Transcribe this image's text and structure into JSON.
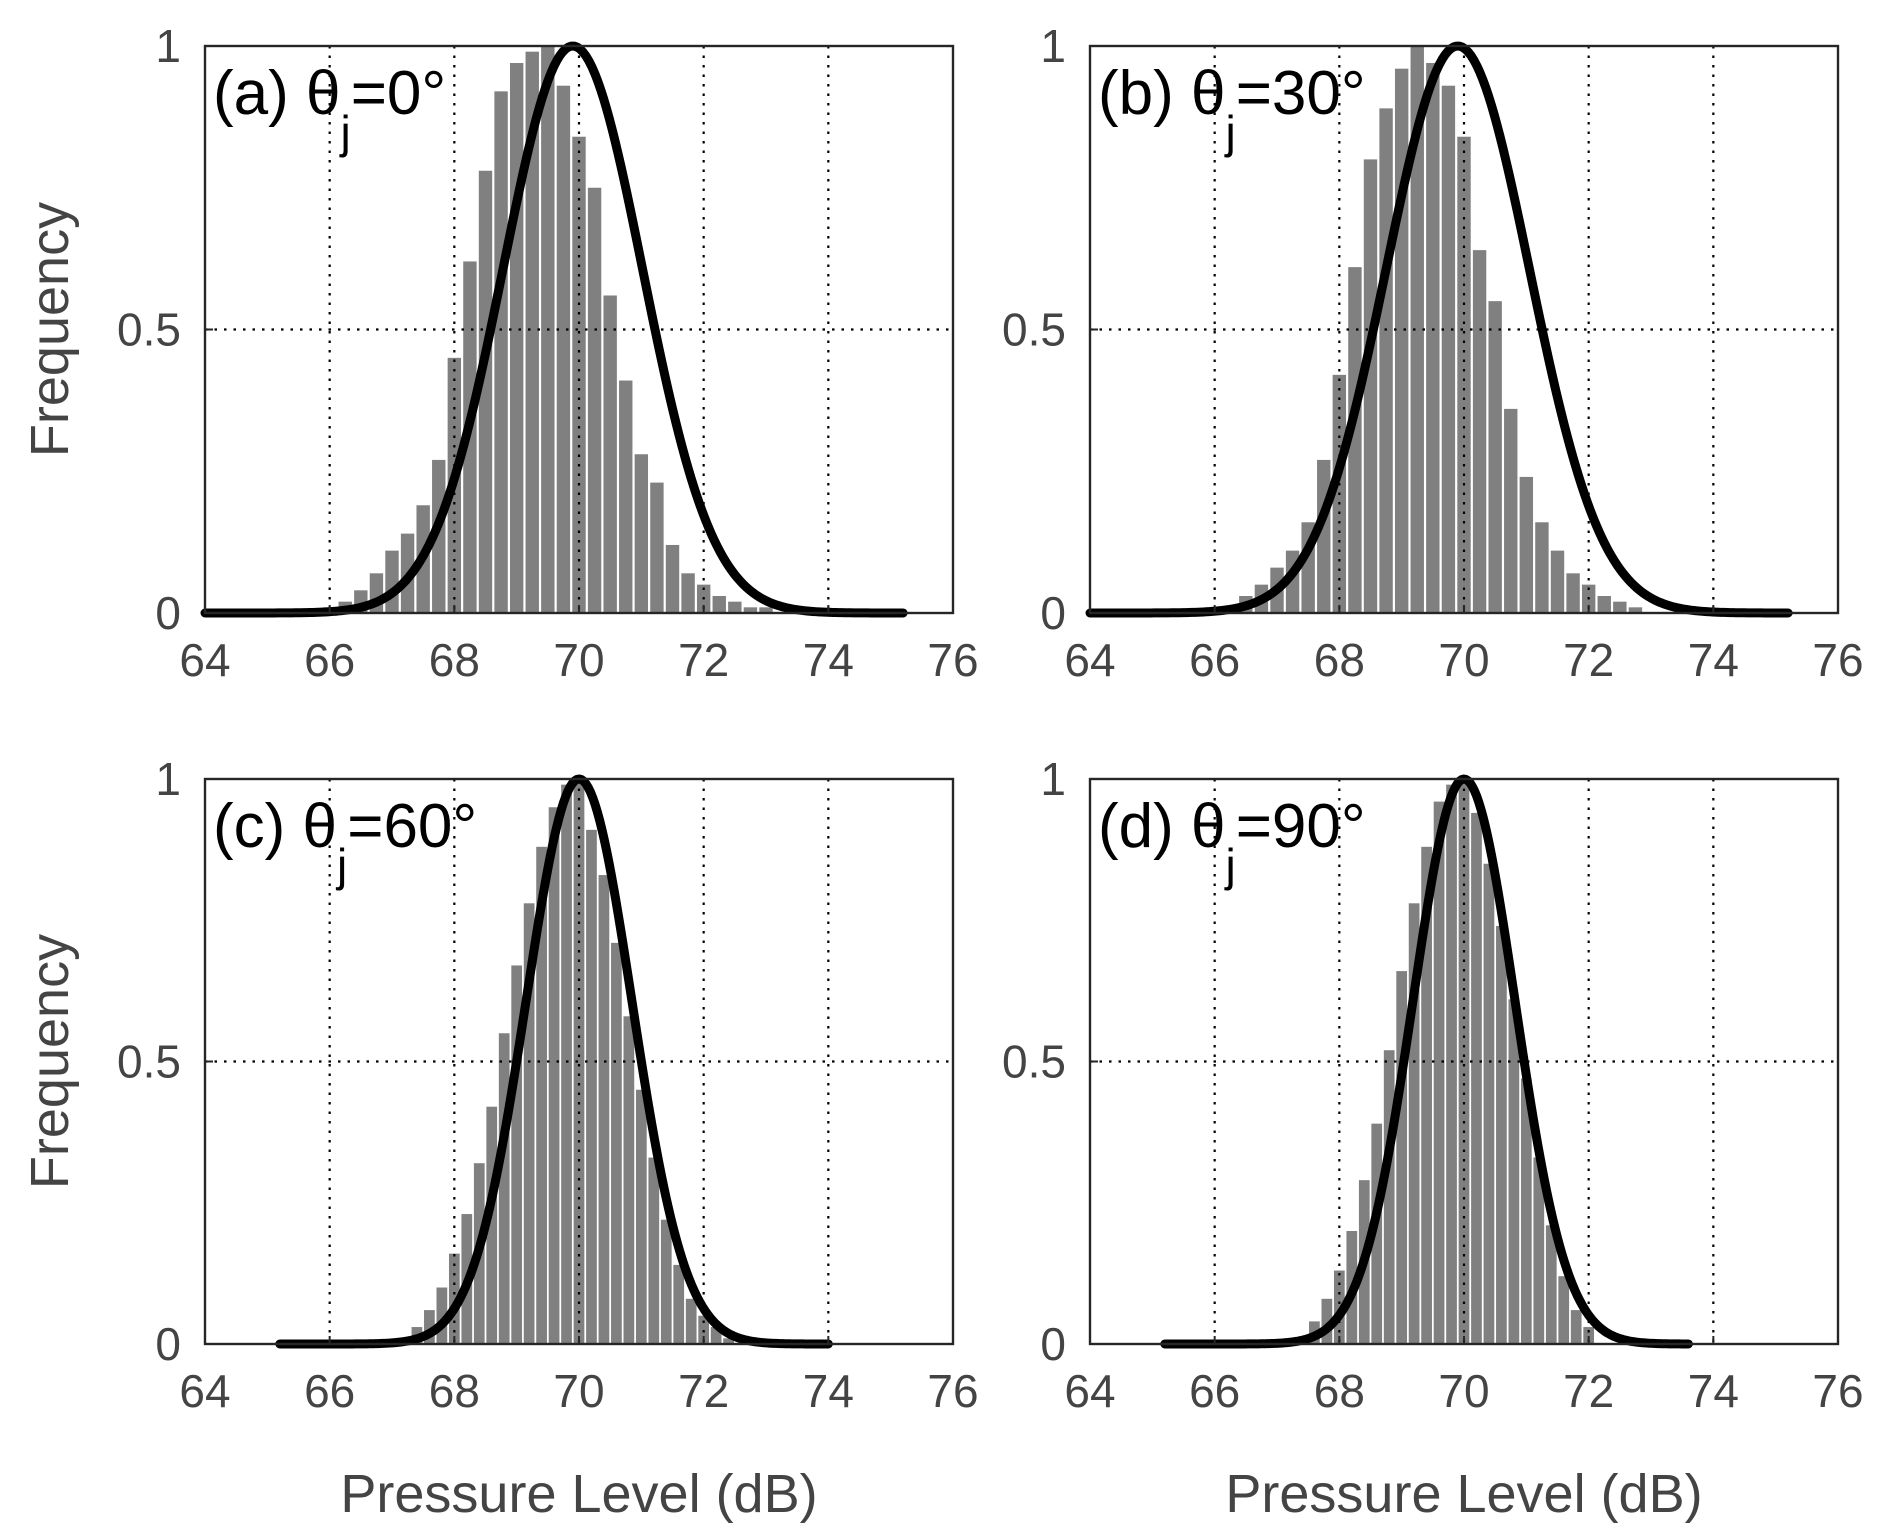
{
  "chart_data": [
    {
      "type": "bar",
      "panel": "(a)",
      "title_prefix": "(a) θ",
      "title_sub": "j",
      "title_suffix": "=0°",
      "xlabel": "",
      "ylabel": "Frequency",
      "xlim": [
        64,
        76
      ],
      "ylim": [
        0,
        1
      ],
      "xticks": [
        "64",
        "66",
        "68",
        "70",
        "72",
        "74",
        "76"
      ],
      "yticks": [
        "0",
        "0.5",
        "1"
      ],
      "grid": true,
      "bins": {
        "x": [
          66.0,
          66.25,
          66.5,
          66.75,
          67.0,
          67.25,
          67.5,
          67.75,
          68.0,
          68.25,
          68.5,
          68.75,
          69.0,
          69.25,
          69.5,
          69.75,
          70.0,
          70.25,
          70.5,
          70.75,
          71.0,
          71.25,
          71.5,
          71.75,
          72.0,
          72.25,
          72.5,
          72.75,
          73.0
        ],
        "values": [
          0.01,
          0.02,
          0.04,
          0.07,
          0.11,
          0.14,
          0.19,
          0.27,
          0.45,
          0.62,
          0.78,
          0.92,
          0.97,
          0.99,
          1.0,
          0.93,
          0.84,
          0.75,
          0.56,
          0.41,
          0.28,
          0.23,
          0.12,
          0.07,
          0.05,
          0.03,
          0.02,
          0.01,
          0.01
        ]
      },
      "fit": {
        "mean": 69.9,
        "sigma": 1.12,
        "x_range": [
          64,
          75.2
        ]
      }
    },
    {
      "type": "bar",
      "panel": "(b)",
      "title_prefix": "(b) θ",
      "title_sub": "j",
      "title_suffix": "=30°",
      "xlabel": "",
      "ylabel": "",
      "xlim": [
        64,
        76
      ],
      "ylim": [
        0,
        1
      ],
      "xticks": [
        "64",
        "66",
        "68",
        "70",
        "72",
        "74",
        "76"
      ],
      "yticks": [
        "0",
        "0.5",
        "1"
      ],
      "grid": true,
      "bins": {
        "x": [
          66.5,
          66.75,
          67.0,
          67.25,
          67.5,
          67.75,
          68.0,
          68.25,
          68.5,
          68.75,
          69.0,
          69.25,
          69.5,
          69.75,
          70.0,
          70.25,
          70.5,
          70.75,
          71.0,
          71.25,
          71.5,
          71.75,
          72.0,
          72.25,
          72.5,
          72.75
        ],
        "values": [
          0.03,
          0.05,
          0.08,
          0.11,
          0.16,
          0.27,
          0.42,
          0.61,
          0.8,
          0.89,
          0.96,
          1.0,
          0.97,
          0.93,
          0.84,
          0.64,
          0.55,
          0.36,
          0.24,
          0.16,
          0.11,
          0.07,
          0.05,
          0.03,
          0.02,
          0.01
        ]
      },
      "fit": {
        "mean": 69.9,
        "sigma": 1.15,
        "x_range": [
          64,
          75.2
        ]
      }
    },
    {
      "type": "bar",
      "panel": "(c)",
      "title_prefix": "(c) θ",
      "title_sub": "j",
      "title_suffix": "=60°",
      "xlabel": "Pressure Level (dB)",
      "ylabel": "Frequency",
      "xlim": [
        64,
        76
      ],
      "ylim": [
        0,
        1
      ],
      "xticks": [
        "64",
        "66",
        "68",
        "70",
        "72",
        "74",
        "76"
      ],
      "yticks": [
        "0",
        "0.5",
        "1"
      ],
      "grid": true,
      "bins": {
        "x": [
          67.4,
          67.6,
          67.8,
          68.0,
          68.2,
          68.4,
          68.6,
          68.8,
          69.0,
          69.2,
          69.4,
          69.6,
          69.8,
          70.0,
          70.2,
          70.4,
          70.6,
          70.8,
          71.0,
          71.2,
          71.4,
          71.6,
          71.8,
          72.0,
          72.2,
          72.4
        ],
        "values": [
          0.03,
          0.06,
          0.1,
          0.16,
          0.23,
          0.32,
          0.42,
          0.55,
          0.67,
          0.78,
          0.88,
          0.95,
          0.99,
          1.0,
          0.91,
          0.83,
          0.71,
          0.58,
          0.45,
          0.33,
          0.22,
          0.14,
          0.08,
          0.05,
          0.03,
          0.01
        ]
      },
      "fit": {
        "mean": 70.0,
        "sigma": 0.85,
        "x_range": [
          65.2,
          74
        ]
      }
    },
    {
      "type": "bar",
      "panel": "(d)",
      "title_prefix": "(d) θ",
      "title_sub": "j",
      "title_suffix": "=90°",
      "xlabel": "Pressure Level (dB)",
      "ylabel": "",
      "xlim": [
        64,
        76
      ],
      "ylim": [
        0,
        1
      ],
      "xticks": [
        "64",
        "66",
        "68",
        "70",
        "72",
        "74",
        "76"
      ],
      "yticks": [
        "0",
        "0.5",
        "1"
      ],
      "grid": true,
      "bins": {
        "x": [
          67.6,
          67.8,
          68.0,
          68.2,
          68.4,
          68.6,
          68.8,
          69.0,
          69.2,
          69.4,
          69.6,
          69.8,
          70.0,
          70.2,
          70.4,
          70.6,
          70.8,
          71.0,
          71.2,
          71.4,
          71.6,
          71.8,
          72.0
        ],
        "values": [
          0.04,
          0.08,
          0.13,
          0.2,
          0.29,
          0.39,
          0.52,
          0.66,
          0.78,
          0.88,
          0.96,
          0.99,
          1.0,
          0.94,
          0.85,
          0.74,
          0.61,
          0.47,
          0.33,
          0.21,
          0.12,
          0.06,
          0.03
        ]
      },
      "fit": {
        "mean": 70.0,
        "sigma": 0.82,
        "x_range": [
          65.2,
          73.6
        ]
      }
    }
  ]
}
